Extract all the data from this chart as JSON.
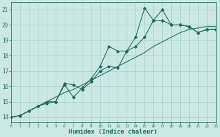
{
  "title": "",
  "xlabel": "Humidex (Indice chaleur)",
  "ylabel": "",
  "bg_color": "#cce8e6",
  "grid_color": "#a8ccca",
  "line_color": "#1a6b5a",
  "xlim": [
    0,
    23
  ],
  "ylim": [
    13.7,
    21.5
  ],
  "xticks": [
    0,
    1,
    2,
    3,
    4,
    5,
    6,
    7,
    8,
    9,
    10,
    11,
    12,
    13,
    14,
    15,
    16,
    17,
    18,
    19,
    20,
    21,
    22,
    23
  ],
  "yticks": [
    14,
    15,
    16,
    17,
    18,
    19,
    20,
    21
  ],
  "series1_x": [
    0,
    1,
    2,
    3,
    4,
    5,
    6,
    7,
    8,
    9,
    10,
    11,
    12,
    13,
    14,
    15,
    16,
    17,
    18,
    19,
    20,
    21,
    22,
    23
  ],
  "series1_y": [
    14.0,
    14.1,
    14.4,
    14.7,
    14.9,
    15.0,
    16.1,
    15.3,
    15.9,
    16.5,
    17.3,
    18.6,
    18.3,
    18.3,
    19.2,
    21.1,
    20.3,
    21.0,
    20.0,
    20.0,
    19.9,
    19.5,
    19.7,
    19.7
  ],
  "series2_x": [
    0,
    1,
    2,
    3,
    4,
    5,
    6,
    7,
    8,
    9,
    10,
    11,
    12,
    13,
    14,
    15,
    16,
    17,
    18,
    19,
    20,
    21,
    22,
    23
  ],
  "series2_y": [
    14.0,
    14.1,
    14.4,
    14.7,
    15.0,
    15.0,
    16.2,
    16.1,
    15.8,
    16.3,
    17.0,
    17.3,
    17.2,
    18.3,
    18.6,
    19.2,
    20.3,
    20.3,
    20.0,
    20.0,
    19.9,
    19.5,
    19.7,
    19.7
  ],
  "series3_x": [
    0,
    1,
    2,
    3,
    4,
    5,
    6,
    7,
    8,
    9,
    10,
    11,
    12,
    13,
    14,
    15,
    16,
    17,
    18,
    19,
    20,
    21,
    22,
    23
  ],
  "series3_y": [
    14.0,
    14.1,
    14.4,
    14.7,
    15.0,
    15.3,
    15.6,
    15.8,
    16.1,
    16.4,
    16.7,
    17.0,
    17.3,
    17.6,
    17.9,
    18.2,
    18.6,
    18.9,
    19.2,
    19.5,
    19.7,
    19.8,
    19.9,
    19.9
  ]
}
